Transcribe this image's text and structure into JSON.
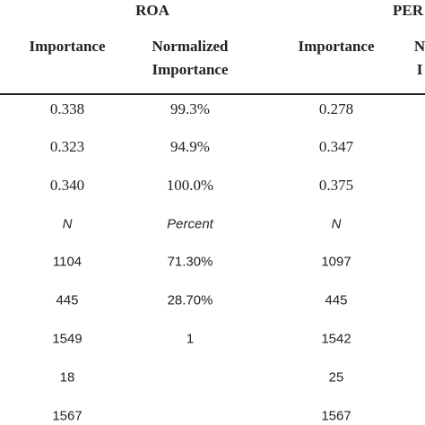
{
  "header": {
    "groups": [
      "ROA",
      "PER"
    ],
    "columns": [
      [
        "Importance"
      ],
      [
        "Normalized",
        "Importance"
      ],
      [
        "Importance"
      ],
      [
        "N",
        "I"
      ]
    ]
  },
  "table": {
    "rows": [
      [
        "0.338",
        "99.3%",
        "0.278"
      ],
      [
        "0.323",
        "94.9%",
        "0.347"
      ],
      [
        "0.340",
        "100.0%",
        "0.375"
      ],
      [
        "N",
        "Percent",
        "N"
      ],
      [
        "1104",
        "71.30%",
        "1097"
      ],
      [
        "445",
        "28.70%",
        "445"
      ],
      [
        "1549",
        "1",
        "1542"
      ],
      [
        "18",
        null,
        "25"
      ],
      [
        "1567",
        null,
        "1567"
      ]
    ]
  }
}
